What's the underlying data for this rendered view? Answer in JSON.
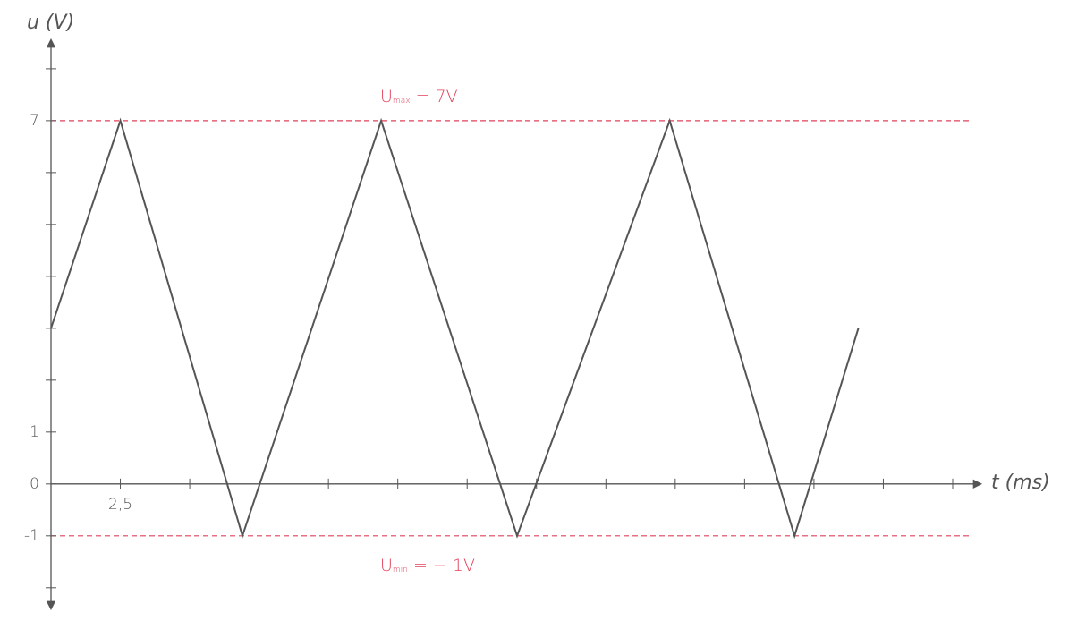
{
  "chart_data": {
    "type": "line",
    "y_label": "u (V)",
    "x_label": "t (ms)",
    "x": [
      0,
      2.5,
      6.9,
      11.9,
      16.8,
      22.3,
      26.8,
      29.1
    ],
    "values": [
      3,
      7,
      -1,
      7,
      -1,
      7,
      -1,
      3
    ],
    "color": "#555555",
    "xlim": [
      0,
      33.5
    ],
    "ylim": [
      -2.4,
      8.55
    ],
    "xticks": [
      {
        "value": 2.5,
        "label": "2,5"
      }
    ],
    "x_minor_ticks": [
      5,
      7.5,
      10,
      12.5,
      15,
      17.5,
      20,
      22.5,
      25,
      27.5,
      30,
      32.5
    ],
    "yticks": [
      -1,
      0,
      1,
      7
    ],
    "y_minor_ticks": [
      -2,
      2,
      3,
      4,
      5,
      6,
      8
    ],
    "reference_lines": [
      {
        "value": 7,
        "label": "U",
        "subscript": "max",
        "suffix": " = 7V",
        "color": "#e0415a"
      },
      {
        "value": -1,
        "label": "U",
        "subscript": "min",
        "suffix": " = − 1V",
        "color": "#e0415a"
      }
    ]
  }
}
